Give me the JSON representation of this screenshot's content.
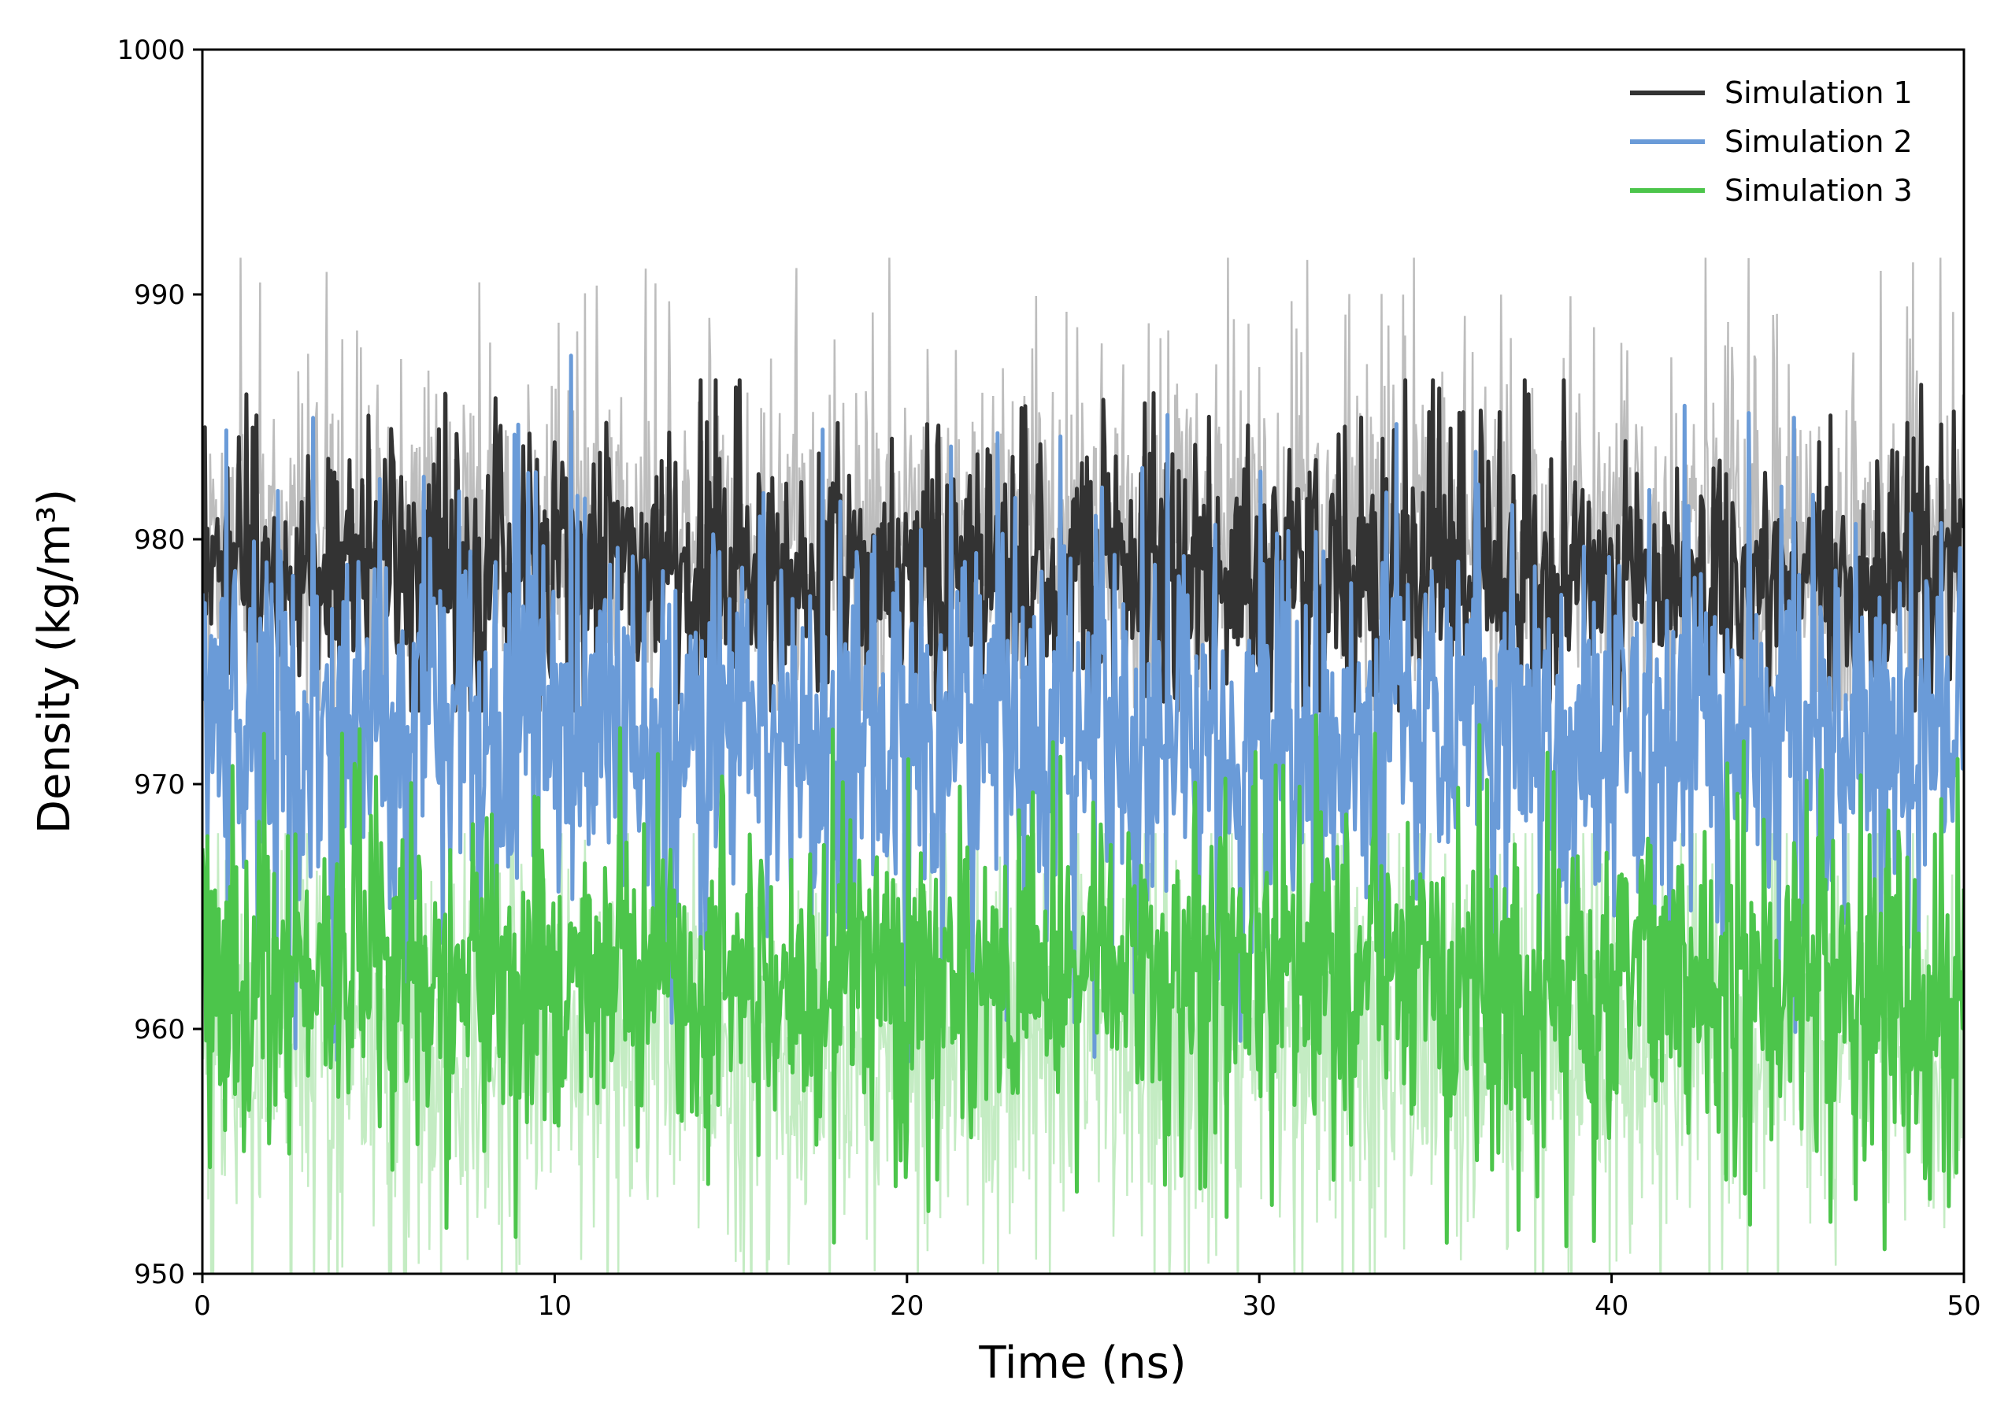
{
  "chart_data": {
    "type": "line",
    "xlabel": "Time (ns)",
    "ylabel": "Density (kg/m³)",
    "xlim": [
      0,
      50
    ],
    "ylim": [
      950,
      1000
    ],
    "xticks": [
      0,
      10,
      20,
      30,
      40,
      50
    ],
    "yticks": [
      950,
      960,
      970,
      980,
      990,
      1000
    ],
    "grid": false,
    "legend_position": "top-right",
    "series": [
      {
        "name": "Simulation 1",
        "color": "#333333",
        "band_color": "#bdbdbd",
        "mean": 978.6,
        "typical_range": [
          973,
          985
        ],
        "envelope_range": [
          972.5,
          991.5
        ]
      },
      {
        "name": "Simulation 2",
        "color": "#6a9bd8",
        "mean": 972.0,
        "typical_range": [
          952,
          987.5
        ]
      },
      {
        "name": "Simulation 3",
        "color": "#4cc54b",
        "band_color": "#c4ecc3",
        "mean": 962.0,
        "typical_range": [
          951,
          974
        ],
        "envelope_range": [
          946,
          974
        ]
      }
    ]
  }
}
